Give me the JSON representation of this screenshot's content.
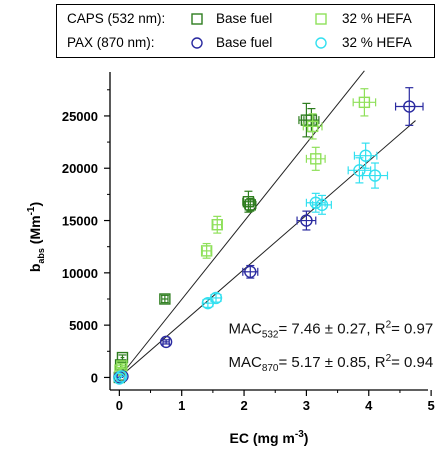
{
  "legend": {
    "rows": [
      {
        "label": "CAPS (532 nm):",
        "entries": [
          {
            "name": "Base fuel",
            "color": "#2e7d1f",
            "marker": "square"
          },
          {
            "name": "32 % HEFA",
            "color": "#8fe05a",
            "marker": "square"
          }
        ]
      },
      {
        "label": "PAX (870 nm):",
        "entries": [
          {
            "name": "Base fuel",
            "color": "#2a2aa0",
            "marker": "circle"
          },
          {
            "name": "32 % HEFA",
            "color": "#33e0f0",
            "marker": "circle"
          }
        ]
      }
    ]
  },
  "chart_data": {
    "type": "scatter",
    "xlabel": "EC (mg m",
    "xlabel_sup": "-3",
    "xlabel_end": ")",
    "ylabel": "b",
    "ylabel_sub": "abs",
    "ylabel_unit": " (Mm",
    "ylabel_sup": "-1",
    "ylabel_end": ")",
    "xlim": [
      -0.15,
      4.95
    ],
    "ylim": [
      -1200,
      29200
    ],
    "xticks": [
      0,
      1,
      2,
      3,
      4,
      5
    ],
    "yticks": [
      0,
      5000,
      10000,
      15000,
      20000,
      25000
    ],
    "grid": false,
    "series": [
      {
        "name": "Base fuel",
        "instrument": "CAPS (532 nm)",
        "marker": "square",
        "color": "#2e7d1f",
        "points": [
          {
            "x": 0.0,
            "y": 0,
            "xerr": 0.03,
            "yerr": 250
          },
          {
            "x": 0.02,
            "y": 1200,
            "xerr": 0.03,
            "yerr": 250
          },
          {
            "x": 0.05,
            "y": 1900,
            "xerr": 0.03,
            "yerr": 250
          },
          {
            "x": 0.73,
            "y": 7500,
            "xerr": 0.05,
            "yerr": 350
          },
          {
            "x": 2.07,
            "y": 16800,
            "xerr": 0.09,
            "yerr": 1000
          },
          {
            "x": 2.1,
            "y": 16500,
            "xerr": 0.09,
            "yerr": 600
          },
          {
            "x": 3.0,
            "y": 24600,
            "xerr": 0.12,
            "yerr": 1600
          },
          {
            "x": 3.08,
            "y": 24600,
            "xerr": 0.12,
            "yerr": 1100
          }
        ]
      },
      {
        "name": "32 % HEFA",
        "instrument": "CAPS (532 nm)",
        "marker": "square",
        "color": "#8fe05a",
        "points": [
          {
            "x": 0.01,
            "y": 700,
            "xerr": 0.03,
            "yerr": 250
          },
          {
            "x": 0.04,
            "y": 1100,
            "xerr": 0.03,
            "yerr": 250
          },
          {
            "x": 1.4,
            "y": 12100,
            "xerr": 0.07,
            "yerr": 700
          },
          {
            "x": 1.57,
            "y": 14600,
            "xerr": 0.07,
            "yerr": 800
          },
          {
            "x": 3.1,
            "y": 24000,
            "xerr": 0.15,
            "yerr": 1200
          },
          {
            "x": 3.15,
            "y": 20900,
            "xerr": 0.15,
            "yerr": 1100
          },
          {
            "x": 3.93,
            "y": 26300,
            "xerr": 0.18,
            "yerr": 1300
          }
        ]
      },
      {
        "name": "Base fuel",
        "instrument": "PAX (870 nm)",
        "marker": "circle",
        "color": "#2a2aa0",
        "points": [
          {
            "x": 0.0,
            "y": 0,
            "xerr": 0.03,
            "yerr": 150
          },
          {
            "x": 0.05,
            "y": 100,
            "xerr": 0.03,
            "yerr": 150
          },
          {
            "x": 0.75,
            "y": 3400,
            "xerr": 0.05,
            "yerr": 200
          },
          {
            "x": 2.1,
            "y": 10100,
            "xerr": 0.12,
            "yerr": 600
          },
          {
            "x": 3.0,
            "y": 15000,
            "xerr": 0.15,
            "yerr": 900
          },
          {
            "x": 4.65,
            "y": 25900,
            "xerr": 0.22,
            "yerr": 1800
          }
        ]
      },
      {
        "name": "32 % HEFA",
        "instrument": "PAX (870 nm)",
        "marker": "circle",
        "color": "#33e0f0",
        "points": [
          {
            "x": 0.0,
            "y": -100,
            "xerr": 0.03,
            "yerr": 150
          },
          {
            "x": 0.03,
            "y": 100,
            "xerr": 0.03,
            "yerr": 150
          },
          {
            "x": 1.42,
            "y": 7100,
            "xerr": 0.08,
            "yerr": 400
          },
          {
            "x": 1.55,
            "y": 7600,
            "xerr": 0.08,
            "yerr": 400
          },
          {
            "x": 3.15,
            "y": 16700,
            "xerr": 0.15,
            "yerr": 900
          },
          {
            "x": 3.25,
            "y": 16500,
            "xerr": 0.15,
            "yerr": 900
          },
          {
            "x": 3.85,
            "y": 19800,
            "xerr": 0.18,
            "yerr": 1200
          },
          {
            "x": 3.95,
            "y": 21200,
            "xerr": 0.18,
            "yerr": 1200
          },
          {
            "x": 4.1,
            "y": 19300,
            "xerr": 0.2,
            "yerr": 1200
          }
        ]
      }
    ],
    "fit_lines": [
      {
        "slope": 7.46,
        "x_range": [
          0,
          3.93
        ]
      },
      {
        "slope": 5.17,
        "x_range": [
          0,
          4.75
        ]
      }
    ],
    "annotations": [
      {
        "prefix": "MAC",
        "sub": "532",
        "body": "= 7.46 ± 0.27, R",
        "sup": "2",
        "end": "= 0.97",
        "x": 1.75,
        "y": 4200
      },
      {
        "prefix": "MAC",
        "sub": "870",
        "body": "= 5.17 ± 0.85, R",
        "sup": "2",
        "end": "= 0.94",
        "x": 1.75,
        "y": 1000
      }
    ]
  }
}
